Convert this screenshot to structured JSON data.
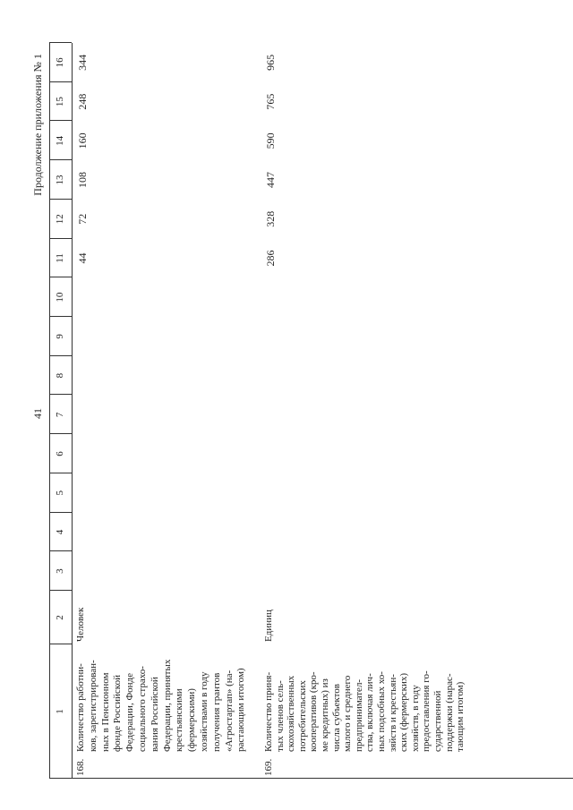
{
  "page_number": "41",
  "title": "Продолжение приложения № 1",
  "table": {
    "header": [
      "1",
      "2",
      "3",
      "4",
      "5",
      "6",
      "7",
      "8",
      "9",
      "10",
      "11",
      "12",
      "13",
      "14",
      "15",
      "16"
    ],
    "rows": [
      {
        "number": "168.",
        "name": [
          "Количество работни-",
          "ков, зарегистрирован-",
          "ных в Пенсионном",
          "фонде Российской",
          "Федерации, Фонде",
          "социального страхо-",
          "вания Российской",
          "Федерации, принятых",
          "крестьянскими",
          "(фермерскими)",
          "хозяйствами в году",
          "получения грантов",
          "«Агростартап» (на-",
          "растающим итогом)"
        ],
        "unit": "Человек",
        "values": [
          null,
          null,
          null,
          null,
          null,
          null,
          null,
          null,
          44,
          72,
          108,
          160,
          248,
          344
        ]
      },
      {
        "number": "169.",
        "name": [
          "Количество приня-",
          "тых членов сель-",
          "скохозяйственных",
          "потребительских",
          "кооперативов (кро-",
          "ме кредитных) из",
          "числа субъектов",
          "малого и среднего",
          "предпринимател-",
          "ства, включая лич-",
          "ных подсобных хо-",
          "зяйств и крестьян-",
          "ских (фермерских)",
          "хозяйств, в году",
          "предоставления го-",
          "сударственной",
          "поддержки (нарас-",
          "тающим итогом)"
        ],
        "unit": "Единиц",
        "values": [
          null,
          null,
          null,
          null,
          null,
          null,
          null,
          null,
          286,
          328,
          447,
          590,
          765,
          965
        ]
      }
    ]
  }
}
